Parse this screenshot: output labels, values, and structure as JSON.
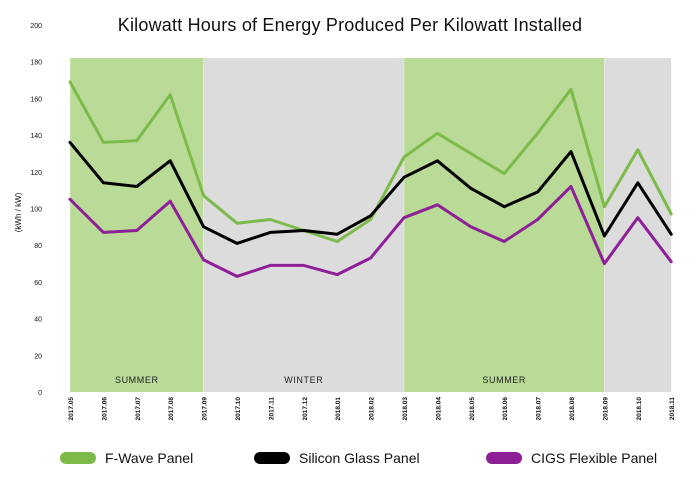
{
  "chart_data": {
    "type": "line",
    "title": "Kilowatt Hours of Energy Produced Per Kilowatt Installed",
    "xlabel": "",
    "ylabel": "(kWh / kW)",
    "ylim": [
      0,
      200
    ],
    "yticks": [
      0,
      20,
      40,
      60,
      80,
      100,
      120,
      140,
      160,
      180,
      200
    ],
    "categories": [
      "2017.05",
      "2017.06",
      "2017.07",
      "2017.08",
      "2017.09",
      "2017.10",
      "2017.11",
      "2017.12",
      "2018.01",
      "2018.02",
      "2018.03",
      "2018.04",
      "2018.05",
      "2018.06",
      "2018.07",
      "2018.08",
      "2018.09",
      "2018.10",
      "2018.11"
    ],
    "series": [
      {
        "name": "F-Wave Panel",
        "color": "#7cbb4a",
        "values": [
          169,
          136,
          137,
          162,
          107,
          92,
          94,
          88,
          82,
          94,
          128,
          141,
          130,
          119,
          141,
          165,
          101,
          132,
          97
        ]
      },
      {
        "name": "Silicon Glass Panel",
        "color": "#000000",
        "values": [
          136,
          114,
          112,
          126,
          90,
          81,
          87,
          88,
          86,
          96,
          117,
          126,
          111,
          101,
          109,
          131,
          85,
          114,
          86
        ]
      },
      {
        "name": "CIGS Flexible Panel",
        "color": "#8e2097",
        "values": [
          105,
          87,
          88,
          104,
          72,
          63,
          69,
          69,
          64,
          73,
          95,
          102,
          90,
          82,
          94,
          112,
          70,
          95,
          71
        ]
      }
    ],
    "bands": [
      {
        "label": "SUMMER",
        "color": "#b9db97",
        "from": "2017.05",
        "to": "2017.09"
      },
      {
        "label": "WINTER",
        "color": "#dcdcdc",
        "from": "2017.09",
        "to": "2018.03"
      },
      {
        "label": "SUMMER",
        "color": "#b9db97",
        "from": "2018.03",
        "to": "2018.09"
      },
      {
        "label": "",
        "color": "#dcdcdc",
        "from": "2018.09",
        "to": "2018.11"
      }
    ],
    "legend": {
      "position": "bottom"
    }
  }
}
